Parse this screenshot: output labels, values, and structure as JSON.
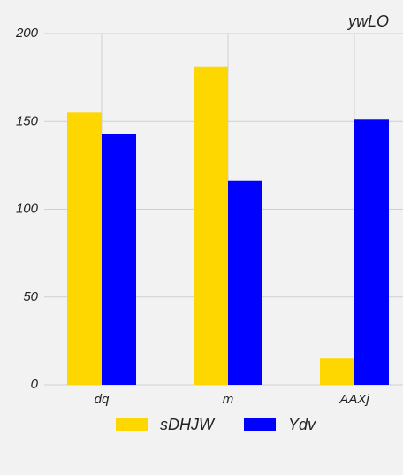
{
  "chart_data": {
    "type": "bar",
    "title": "ywLO",
    "xlabel": "",
    "ylabel": "",
    "categories": [
      "dq",
      "m",
      "AAXj"
    ],
    "series": [
      {
        "name": "sDHJW",
        "values": [
          155,
          181,
          15
        ],
        "color": "#ffd700"
      },
      {
        "name": "Ydv",
        "values": [
          143,
          116,
          151
        ],
        "color": "#0000ff"
      }
    ],
    "ylim": [
      0,
      200
    ],
    "yticks": [
      0,
      50,
      100,
      150,
      200
    ],
    "grid": true,
    "legend_position": "bottom-center",
    "background": "#f2f2f2",
    "grid_color": "#d0d0d0"
  }
}
